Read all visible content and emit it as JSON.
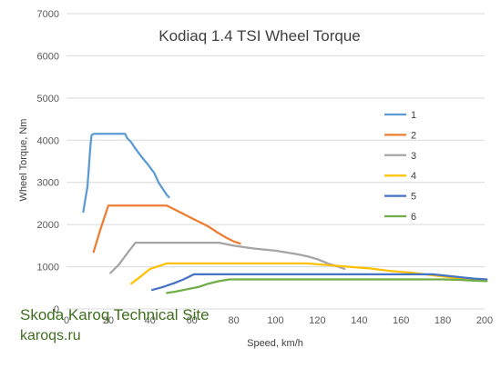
{
  "chart_data": {
    "type": "line",
    "title": "Kodiaq 1.4 TSI Wheel Torque",
    "xlabel": "Speed, km/h",
    "ylabel": "Wheel Torque, Nm",
    "xlim": [
      0,
      200
    ],
    "ylim": [
      0,
      7000
    ],
    "x_ticks": [
      0,
      20,
      40,
      60,
      80,
      100,
      120,
      140,
      160,
      180,
      200
    ],
    "y_ticks": [
      0,
      1000,
      2000,
      3000,
      4000,
      5000,
      6000,
      7000
    ],
    "grid": "horizontal",
    "legend_position": "right",
    "series": [
      {
        "name": "1",
        "color": "#5b9bd5",
        "points": [
          [
            8,
            2300
          ],
          [
            10,
            2900
          ],
          [
            11,
            3550
          ],
          [
            11.5,
            3900
          ],
          [
            12,
            4120
          ],
          [
            13,
            4150
          ],
          [
            28,
            4150
          ],
          [
            29,
            4050
          ],
          [
            31,
            3950
          ],
          [
            33,
            3800
          ],
          [
            36,
            3600
          ],
          [
            39,
            3420
          ],
          [
            42,
            3220
          ],
          [
            44,
            3000
          ],
          [
            46,
            2850
          ],
          [
            48,
            2700
          ],
          [
            49,
            2650
          ]
        ]
      },
      {
        "name": "2",
        "color": "#ed7d31",
        "points": [
          [
            13,
            1350
          ],
          [
            16,
            1850
          ],
          [
            19,
            2300
          ],
          [
            20,
            2450
          ],
          [
            48,
            2450
          ],
          [
            52,
            2350
          ],
          [
            56,
            2250
          ],
          [
            60,
            2150
          ],
          [
            64,
            2050
          ],
          [
            68,
            1950
          ],
          [
            72,
            1820
          ],
          [
            76,
            1700
          ],
          [
            80,
            1600
          ],
          [
            83,
            1550
          ]
        ]
      },
      {
        "name": "3",
        "color": "#a5a5a5",
        "points": [
          [
            21,
            850
          ],
          [
            25,
            1050
          ],
          [
            30,
            1380
          ],
          [
            33,
            1570
          ],
          [
            73,
            1570
          ],
          [
            80,
            1500
          ],
          [
            90,
            1430
          ],
          [
            100,
            1380
          ],
          [
            110,
            1300
          ],
          [
            115,
            1250
          ],
          [
            120,
            1180
          ],
          [
            125,
            1080
          ],
          [
            130,
            1000
          ],
          [
            133,
            950
          ]
        ]
      },
      {
        "name": "4",
        "color": "#ffc000",
        "points": [
          [
            31,
            600
          ],
          [
            35,
            750
          ],
          [
            40,
            950
          ],
          [
            48,
            1080
          ],
          [
            115,
            1080
          ],
          [
            125,
            1040
          ],
          [
            135,
            1000
          ],
          [
            145,
            960
          ],
          [
            155,
            900
          ],
          [
            165,
            860
          ],
          [
            175,
            800
          ],
          [
            185,
            740
          ],
          [
            195,
            700
          ],
          [
            200,
            680
          ]
        ]
      },
      {
        "name": "5",
        "color": "#4472c4",
        "points": [
          [
            41,
            450
          ],
          [
            46,
            520
          ],
          [
            52,
            620
          ],
          [
            56,
            700
          ],
          [
            61,
            820
          ],
          [
            175,
            820
          ],
          [
            185,
            770
          ],
          [
            195,
            720
          ],
          [
            201,
            700
          ]
        ]
      },
      {
        "name": "6",
        "color": "#70ad47",
        "points": [
          [
            48,
            380
          ],
          [
            52,
            410
          ],
          [
            58,
            470
          ],
          [
            63,
            520
          ],
          [
            68,
            600
          ],
          [
            73,
            660
          ],
          [
            78,
            700
          ],
          [
            180,
            700
          ],
          [
            188,
            690
          ],
          [
            195,
            670
          ],
          [
            201,
            660
          ]
        ]
      }
    ]
  },
  "watermark": {
    "line1": "Skoda Karoq Technical Site",
    "line2": "karoqs.ru"
  }
}
